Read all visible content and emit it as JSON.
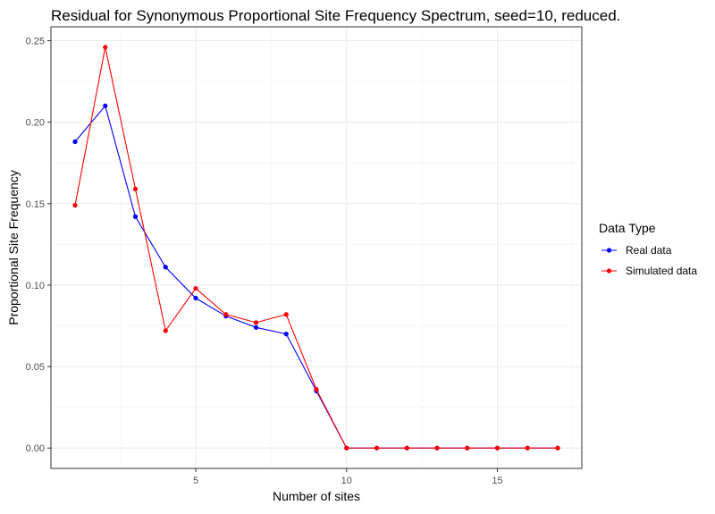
{
  "chart_data": {
    "type": "line",
    "title": "Residual for Synonymous Proportional Site Frequency Spectrum, seed=10, reduced.",
    "xlabel": "Number of sites",
    "ylabel": "Proportional Site Frequency",
    "x": [
      1,
      2,
      3,
      4,
      5,
      6,
      7,
      8,
      9,
      10,
      11,
      12,
      13,
      14,
      15,
      16,
      17
    ],
    "xlim": [
      0.2,
      17.8
    ],
    "ylim": [
      -0.0125,
      0.2585
    ],
    "xticks": [
      5,
      10,
      15
    ],
    "xtick_labels": [
      "5",
      "10",
      "15"
    ],
    "yticks": [
      0,
      0.05,
      0.1,
      0.15,
      0.2,
      0.25
    ],
    "ytick_labels": [
      "0.00",
      "0.05",
      "0.10",
      "0.15",
      "0.20",
      "0.25"
    ],
    "grid": true,
    "legend": {
      "title": "Data Type",
      "position": "right"
    },
    "series": [
      {
        "name": "Real data",
        "color": "#0000ff",
        "values": [
          0.188,
          0.21,
          0.142,
          0.111,
          0.092,
          0.081,
          0.074,
          0.07,
          0.035,
          0,
          0,
          0,
          0,
          0,
          0,
          0,
          0
        ]
      },
      {
        "name": "Simulated data",
        "color": "#ff0000",
        "values": [
          0.149,
          0.246,
          0.159,
          0.072,
          0.098,
          0.082,
          0.077,
          0.082,
          0.036,
          0,
          0,
          0,
          0,
          0,
          0,
          0,
          0
        ]
      }
    ]
  }
}
